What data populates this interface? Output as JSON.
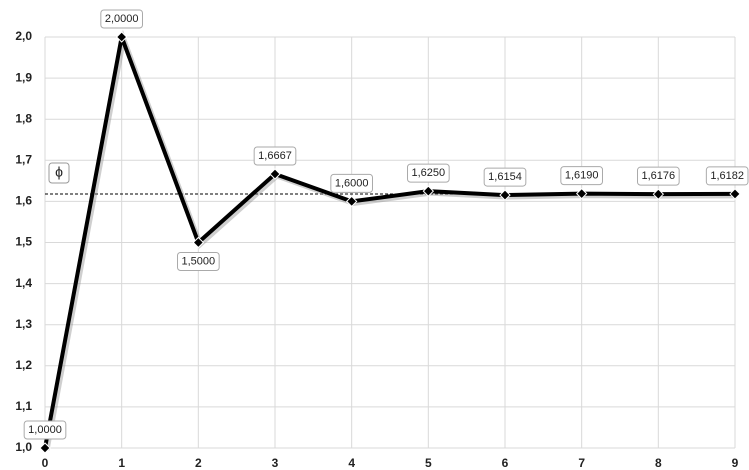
{
  "chart_data": {
    "type": "line",
    "x": [
      0,
      1,
      2,
      3,
      4,
      5,
      6,
      7,
      8,
      9
    ],
    "series": [
      {
        "color": "#000000",
        "values": [
          1.0,
          2.0,
          1.5,
          1.6667,
          1.6,
          1.625,
          1.6154,
          1.619,
          1.6176,
          1.6182
        ],
        "value_labels": [
          "1,0000",
          "2,0000",
          "1,5000",
          "1,6667",
          "1,6000",
          "1,6250",
          "1,6154",
          "1,6190",
          "1,6176",
          "1,6182"
        ]
      }
    ],
    "xlim": [
      0,
      9
    ],
    "xticks": [
      0,
      1,
      2,
      3,
      4,
      5,
      6,
      7,
      8,
      9
    ],
    "ylim": [
      1.0,
      2.0
    ],
    "yticks": [
      {
        "value": 1.0,
        "label": "1,0"
      },
      {
        "value": 1.1,
        "label": "1,1"
      },
      {
        "value": 1.2,
        "label": "1,2"
      },
      {
        "value": 1.3,
        "label": "1,3"
      },
      {
        "value": 1.4,
        "label": "1,4"
      },
      {
        "value": 1.5,
        "label": "1,5"
      },
      {
        "value": 1.6,
        "label": "1,6"
      },
      {
        "value": 1.7,
        "label": "1,7"
      },
      {
        "value": 1.8,
        "label": "1,8"
      },
      {
        "value": 1.9,
        "label": "1,9"
      },
      {
        "value": 2.0,
        "label": "2,0"
      }
    ],
    "grid": true,
    "reference_line": {
      "value": 1.618,
      "label": "ϕ"
    }
  }
}
